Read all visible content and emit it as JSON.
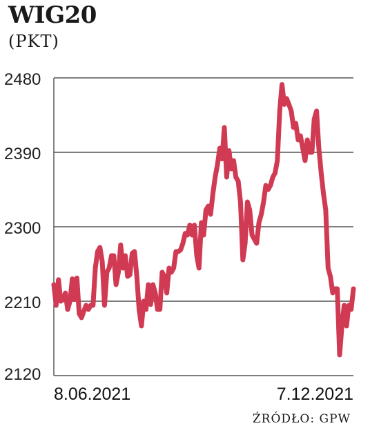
{
  "title": "WIG20",
  "unit": "(PKT)",
  "source": "ŹRÓDŁO: GPW",
  "chart_data": {
    "type": "line",
    "title": "WIG20",
    "ylabel": "(PKT)",
    "ylim": [
      2120,
      2480
    ],
    "yticks": [
      "2480",
      "2390",
      "2300",
      "2210",
      "2120"
    ],
    "x_labels": [
      "8.06.2021",
      "7.12.2021"
    ],
    "grid": "horizontal",
    "line_color": "#d03a52",
    "values": [
      2230,
      2205,
      2236,
      2210,
      2212,
      2220,
      2200,
      2210,
      2237,
      2212,
      2238,
      2195,
      2190,
      2198,
      2205,
      2200,
      2205,
      2205,
      2250,
      2270,
      2275,
      2258,
      2205,
      2245,
      2250,
      2265,
      2265,
      2230,
      2245,
      2278,
      2250,
      2265,
      2240,
      2242,
      2268,
      2270,
      2240,
      2200,
      2180,
      2210,
      2200,
      2230,
      2206,
      2230,
      2220,
      2200,
      2200,
      2245,
      2240,
      2220,
      2250,
      2245,
      2250,
      2270,
      2270,
      2272,
      2280,
      2292,
      2290,
      2302,
      2290,
      2302,
      2265,
      2250,
      2305,
      2290,
      2320,
      2325,
      2315,
      2340,
      2360,
      2375,
      2395,
      2382,
      2420,
      2360,
      2392,
      2370,
      2380,
      2360,
      2355,
      2330,
      2260,
      2280,
      2330,
      2320,
      2290,
      2285,
      2280,
      2305,
      2315,
      2330,
      2350,
      2345,
      2350,
      2360,
      2365,
      2380,
      2440,
      2472,
      2448,
      2455,
      2448,
      2440,
      2420,
      2425,
      2405,
      2410,
      2395,
      2380,
      2405,
      2390,
      2390,
      2430,
      2440,
      2395,
      2365,
      2340,
      2320,
      2250,
      2240,
      2220,
      2225,
      2225,
      2145,
      2180,
      2205,
      2180,
      2205,
      2200,
      2225
    ]
  }
}
